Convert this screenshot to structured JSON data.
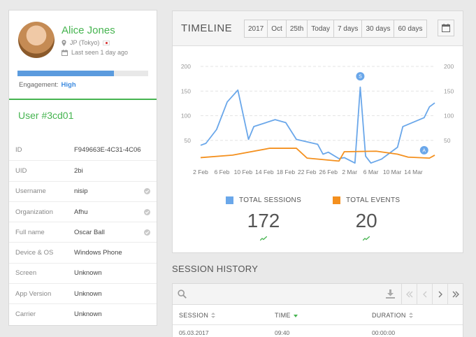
{
  "profile": {
    "name": "Alice Jones",
    "location": "JP (Tokyo)",
    "last_seen": "Last seen 1 day ago",
    "engagement_label": "Engagement:",
    "engagement_value": "High",
    "engagement_fraction": 0.74,
    "user_id": "User #3cd01",
    "fields": [
      {
        "label": "ID",
        "value": "F949663E-4C31-4C06",
        "verified": false
      },
      {
        "label": "UID",
        "value": "2bi",
        "verified": false
      },
      {
        "label": "Username",
        "value": "nisip",
        "verified": true
      },
      {
        "label": "Organization",
        "value": "Afhu",
        "verified": true
      },
      {
        "label": "Full name",
        "value": "Oscar Ball",
        "verified": true
      },
      {
        "label": "Device & OS",
        "value": "Windows Phone",
        "verified": false
      },
      {
        "label": "Screen",
        "value": "Unknown",
        "verified": false
      },
      {
        "label": "App Version",
        "value": "Unknown",
        "verified": false
      },
      {
        "label": "Carrier",
        "value": "Unknown",
        "verified": false
      }
    ]
  },
  "timeline": {
    "title": "TIMELINE",
    "ranges": [
      "2017",
      "Oct",
      "25th",
      "Today",
      "7 days",
      "30 days",
      "60 days"
    ],
    "stats": [
      {
        "label": "TOTAL SESSIONS",
        "value": "172",
        "color": "#6aa7ea"
      },
      {
        "label": "TOTAL EVENTS",
        "value": "20",
        "color": "#f4901e"
      }
    ]
  },
  "chart_data": {
    "type": "line",
    "x_labels": [
      "2 Feb",
      "6 Feb",
      "10 Feb",
      "14 Feb",
      "18 Feb",
      "22 Feb",
      "26 Feb",
      "2 Mar",
      "6 Mar",
      "10 Mar",
      "14 Mar"
    ],
    "y_ticks": [
      50,
      100,
      150,
      200
    ],
    "ylim": [
      0,
      210
    ],
    "series": [
      {
        "name": "TOTAL SESSIONS",
        "color": "#6aa7ea",
        "points": [
          [
            0,
            40
          ],
          [
            1,
            44
          ],
          [
            3,
            72
          ],
          [
            5,
            128
          ],
          [
            7,
            152
          ],
          [
            9,
            52
          ],
          [
            10,
            78
          ],
          [
            14,
            92
          ],
          [
            16,
            86
          ],
          [
            18,
            52
          ],
          [
            22,
            42
          ],
          [
            23,
            22
          ],
          [
            24,
            26
          ],
          [
            26,
            13
          ],
          [
            27,
            15
          ],
          [
            29,
            4
          ],
          [
            30,
            158
          ],
          [
            31,
            18
          ],
          [
            32,
            4
          ],
          [
            34,
            12
          ],
          [
            35,
            20
          ],
          [
            37,
            36
          ],
          [
            38,
            78
          ],
          [
            42,
            96
          ],
          [
            43,
            118
          ],
          [
            44,
            126
          ]
        ]
      },
      {
        "name": "TOTAL EVENTS",
        "color": "#f4901e",
        "points": [
          [
            0,
            15
          ],
          [
            6,
            20
          ],
          [
            13,
            34
          ],
          [
            18,
            34
          ],
          [
            20,
            14
          ],
          [
            26,
            8
          ],
          [
            27,
            27
          ],
          [
            33,
            28
          ],
          [
            37,
            22
          ],
          [
            39,
            16
          ],
          [
            43,
            14
          ],
          [
            44,
            20
          ]
        ]
      }
    ],
    "annotations": [
      {
        "label": "S",
        "x": 30,
        "y": 180
      },
      {
        "label": "A",
        "x": 42,
        "y": 30
      }
    ]
  },
  "session_history": {
    "title": "SESSION HISTORY",
    "columns": [
      "SESSION",
      "TIME",
      "DURATION"
    ],
    "rows": [
      {
        "session": "05.03.2017",
        "time": "09:40",
        "duration": "00:00:00"
      }
    ]
  }
}
